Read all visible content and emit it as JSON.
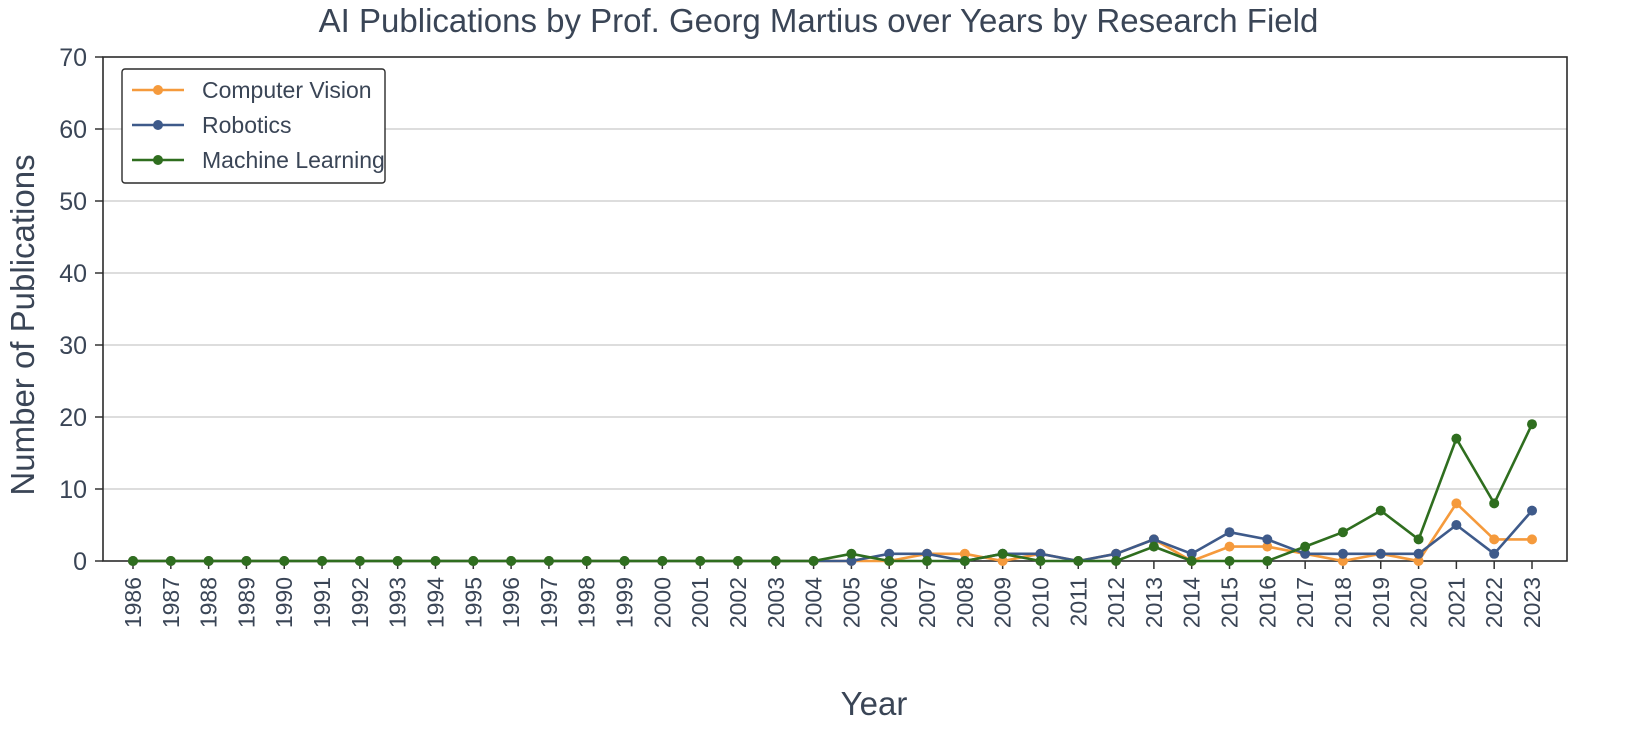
{
  "chart_data": {
    "type": "line",
    "title": "AI Publications by Prof. Georg Martius over Years by Research Field",
    "xlabel": "Year",
    "ylabel": "Number of Publications",
    "ylim": [
      0,
      70
    ],
    "yticks": [
      0,
      10,
      20,
      30,
      40,
      50,
      60,
      70
    ],
    "grid": "horizontal",
    "legend_position": "top-left",
    "x": [
      "1986",
      "1987",
      "1988",
      "1989",
      "1990",
      "1991",
      "1992",
      "1993",
      "1994",
      "1995",
      "1996",
      "1997",
      "1998",
      "1999",
      "2000",
      "2001",
      "2002",
      "2003",
      "2004",
      "2005",
      "2006",
      "2007",
      "2008",
      "2009",
      "2010",
      "2011",
      "2012",
      "2013",
      "2014",
      "2015",
      "2016",
      "2017",
      "2018",
      "2019",
      "2020",
      "2021",
      "2022",
      "2023"
    ],
    "series": [
      {
        "name": "Computer Vision",
        "color": "#f59a3c",
        "values": [
          0,
          0,
          0,
          0,
          0,
          0,
          0,
          0,
          0,
          0,
          0,
          0,
          0,
          0,
          0,
          0,
          0,
          0,
          0,
          0,
          0,
          1,
          1,
          0,
          1,
          0,
          1,
          3,
          0,
          2,
          2,
          1,
          0,
          1,
          0,
          8,
          3,
          3
        ]
      },
      {
        "name": "Robotics",
        "color": "#3e5a8a",
        "values": [
          0,
          0,
          0,
          0,
          0,
          0,
          0,
          0,
          0,
          0,
          0,
          0,
          0,
          0,
          0,
          0,
          0,
          0,
          0,
          0,
          1,
          1,
          0,
          1,
          1,
          0,
          1,
          3,
          1,
          4,
          3,
          1,
          1,
          1,
          1,
          5,
          1,
          7
        ]
      },
      {
        "name": "Machine Learning",
        "color": "#2f6e1f",
        "values": [
          0,
          0,
          0,
          0,
          0,
          0,
          0,
          0,
          0,
          0,
          0,
          0,
          0,
          0,
          0,
          0,
          0,
          0,
          0,
          1,
          0,
          0,
          0,
          1,
          0,
          0,
          0,
          2,
          0,
          0,
          0,
          2,
          4,
          7,
          3,
          17,
          8,
          19
        ]
      }
    ]
  }
}
